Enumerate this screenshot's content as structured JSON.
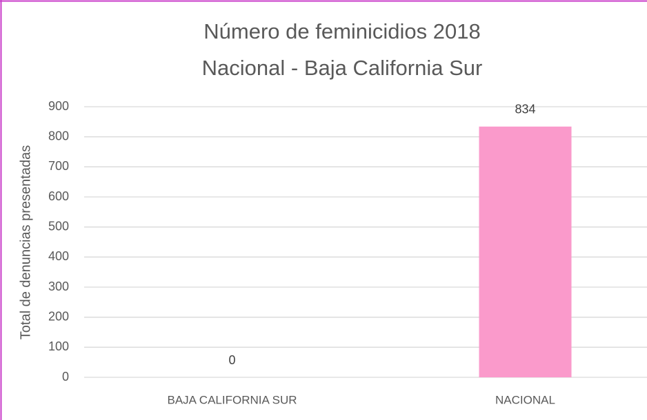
{
  "chart_data": {
    "type": "bar",
    "title": "Número de feminicidios 2018",
    "subtitle": "Nacional - Baja California Sur",
    "y_label": "Total de denuncias presentadas",
    "categories": [
      "BAJA CALIFORNIA SUR",
      "NACIONAL"
    ],
    "values": [
      0,
      834
    ],
    "color": "#fa9acb",
    "ylim": [
      0,
      900
    ],
    "yticks": [
      0,
      100,
      200,
      300,
      400,
      500,
      600,
      700,
      800,
      900
    ],
    "grid": true
  }
}
